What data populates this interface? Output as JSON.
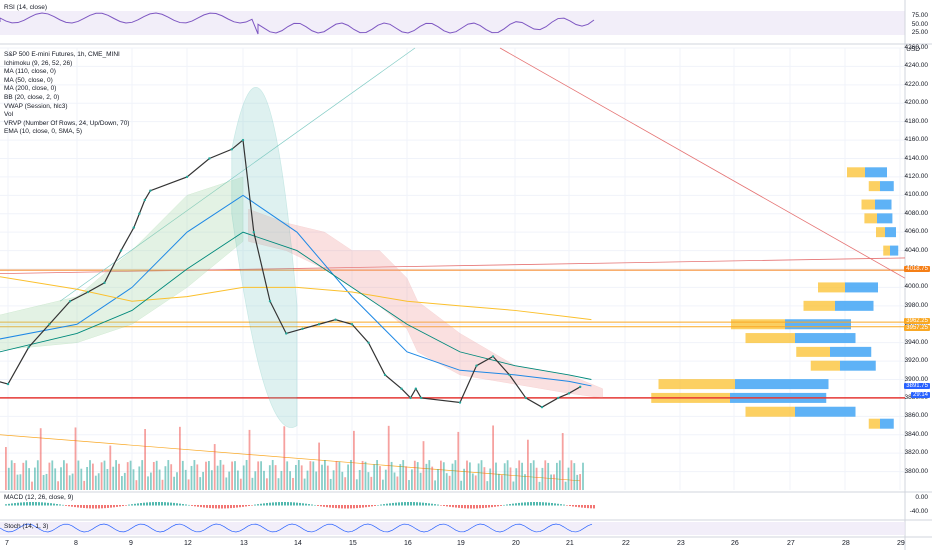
{
  "panes": {
    "rsi": {
      "label": "RSI (14, close)",
      "ticks": [
        "75.00",
        "50.00",
        "25.00"
      ]
    },
    "macd": {
      "label": "MACD (12, 26, close, 9)",
      "ticks": [
        "0.00",
        "-40.00"
      ]
    },
    "stoch": {
      "label": "Stoch (14, 1, 3)"
    }
  },
  "main": {
    "axis_unit": "USD",
    "legend": [
      "S&P 500 E-mini Futures, 1h, CME_MINI",
      "Ichimoku (9, 26, 52, 26)",
      "MA (110, close, 0)",
      "MA (50, close, 0)",
      "MA (200, close, 0)",
      "BB (20, close, 2, 0)",
      "VWAP (Session, hlc3)",
      "Vol",
      "VRVP (Number Of Rows, 24, Up/Down, 70)",
      "EMA (10, close, 0, SMA, 5)"
    ],
    "price_tags": [
      {
        "value": "4018.75",
        "color": "#f57f17"
      },
      {
        "value": "3962.25",
        "color": "#f9a825"
      },
      {
        "value": "3957.25",
        "color": "#f9a825"
      },
      {
        "value": "3891.75",
        "color": "#2962ff"
      },
      {
        "value": "29:14",
        "color": "#2962ff"
      }
    ]
  },
  "chart_data": {
    "type": "line",
    "title": "S&P 500 E-mini Futures, 1h, CME_MINI",
    "ylim": [
      3780,
      4260
    ],
    "yticks": [
      4260,
      4240,
      4220,
      4200,
      4180,
      4160,
      4140,
      4120,
      4100,
      4080,
      4060,
      4040,
      4020,
      4000,
      3980,
      3960,
      3940,
      3920,
      3900,
      3880,
      3860,
      3840,
      3820,
      3800
    ],
    "x_ticks": [
      {
        "label": "7",
        "pos": 7
      },
      {
        "label": "8",
        "pos": 8
      },
      {
        "label": "9",
        "pos": 9
      },
      {
        "label": "12",
        "pos": 12
      },
      {
        "label": "13",
        "pos": 13
      },
      {
        "label": "14",
        "pos": 14
      },
      {
        "label": "15",
        "pos": 15
      },
      {
        "label": "16",
        "pos": 16
      },
      {
        "label": "19",
        "pos": 19
      },
      {
        "label": "20",
        "pos": 20
      },
      {
        "label": "21",
        "pos": 21
      },
      {
        "label": "22",
        "pos": 22
      },
      {
        "label": "23",
        "pos": 23
      },
      {
        "label": "26",
        "pos": 26
      },
      {
        "label": "27",
        "pos": 27
      },
      {
        "label": "28",
        "pos": 28
      },
      {
        "label": "29",
        "pos": 29
      }
    ],
    "close_series": [
      {
        "x": 6.7,
        "y": 3900
      },
      {
        "x": 7.0,
        "y": 3895
      },
      {
        "x": 7.3,
        "y": 3935
      },
      {
        "x": 7.6,
        "y": 3960
      },
      {
        "x": 7.9,
        "y": 3985
      },
      {
        "x": 8.2,
        "y": 3995
      },
      {
        "x": 8.5,
        "y": 4005
      },
      {
        "x": 8.8,
        "y": 4040
      },
      {
        "x": 9.1,
        "y": 4065
      },
      {
        "x": 9.4,
        "y": 4080
      },
      {
        "x": 9.7,
        "y": 4095
      },
      {
        "x": 10.0,
        "y": 4105
      },
      {
        "x": 12.0,
        "y": 4120
      },
      {
        "x": 12.4,
        "y": 4140
      },
      {
        "x": 12.8,
        "y": 4150
      },
      {
        "x": 13.0,
        "y": 4160
      },
      {
        "x": 13.2,
        "y": 4060
      },
      {
        "x": 13.5,
        "y": 3985
      },
      {
        "x": 13.8,
        "y": 3950
      },
      {
        "x": 14.1,
        "y": 3955
      },
      {
        "x": 14.4,
        "y": 3960
      },
      {
        "x": 14.7,
        "y": 3965
      },
      {
        "x": 15.0,
        "y": 3960
      },
      {
        "x": 15.3,
        "y": 3940
      },
      {
        "x": 15.6,
        "y": 3905
      },
      {
        "x": 15.9,
        "y": 3890
      },
      {
        "x": 16.2,
        "y": 3880
      },
      {
        "x": 16.5,
        "y": 3890
      },
      {
        "x": 16.8,
        "y": 3880
      },
      {
        "x": 19.0,
        "y": 3875
      },
      {
        "x": 19.3,
        "y": 3915
      },
      {
        "x": 19.6,
        "y": 3925
      },
      {
        "x": 19.9,
        "y": 3905
      },
      {
        "x": 20.2,
        "y": 3880
      },
      {
        "x": 20.5,
        "y": 3870
      },
      {
        "x": 20.8,
        "y": 3880
      },
      {
        "x": 21.0,
        "y": 3885
      },
      {
        "x": 21.2,
        "y": 3892
      }
    ],
    "horizontal_levels": [
      {
        "value": 4018.75,
        "color": "#f57f17"
      },
      {
        "value": 3962.25,
        "color": "#f9a825"
      },
      {
        "value": 3957.25,
        "color": "#f9a825"
      },
      {
        "value": 3880,
        "color": "#e53935"
      }
    ],
    "grid": true,
    "legend_position": "top-left"
  }
}
